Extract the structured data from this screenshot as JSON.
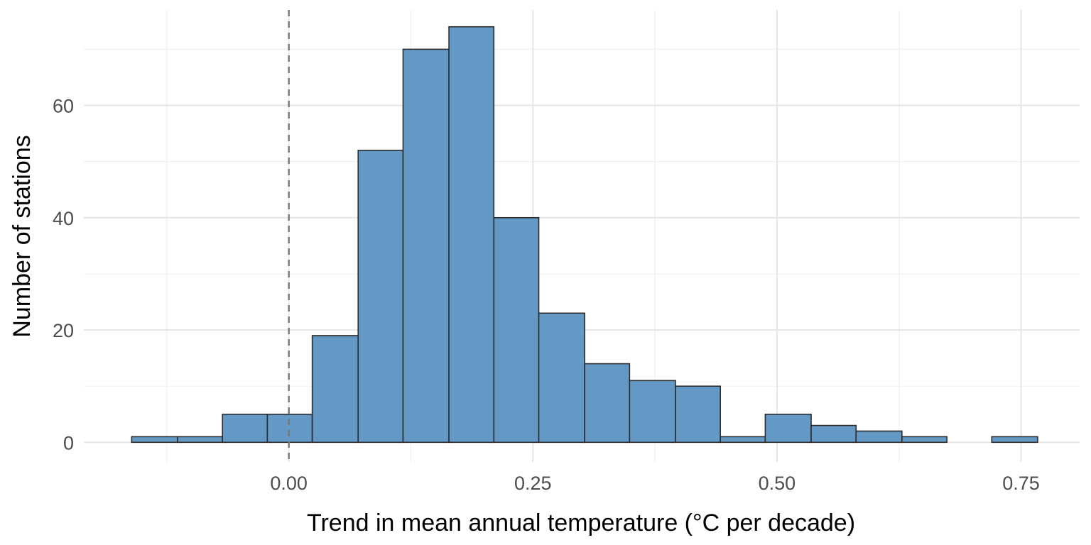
{
  "chart_data": {
    "type": "bar",
    "subtype": "histogram",
    "title": "",
    "xlabel": "Trend in mean annual temperature (°C per decade)",
    "ylabel": "Number of stations",
    "xlim": [
      -0.21,
      0.81
    ],
    "ylim": [
      -3.5,
      77
    ],
    "x_ticks": [
      0.0,
      0.25,
      0.5,
      0.75
    ],
    "x_tick_labels": [
      "0.00",
      "0.25",
      "0.50",
      "0.75"
    ],
    "y_ticks": [
      0,
      20,
      40,
      60
    ],
    "y_tick_labels": [
      "0",
      "20",
      "40",
      "60"
    ],
    "bin_width": 0.0464,
    "bins": [
      {
        "x0": -0.161,
        "x1": -0.114,
        "count": 1
      },
      {
        "x0": -0.114,
        "x1": -0.068,
        "count": 1
      },
      {
        "x0": -0.068,
        "x1": -0.022,
        "count": 5
      },
      {
        "x0": -0.022,
        "x1": 0.024,
        "count": 5
      },
      {
        "x0": 0.024,
        "x1": 0.071,
        "count": 19
      },
      {
        "x0": 0.071,
        "x1": 0.117,
        "count": 52
      },
      {
        "x0": 0.117,
        "x1": 0.164,
        "count": 70
      },
      {
        "x0": 0.164,
        "x1": 0.21,
        "count": 74
      },
      {
        "x0": 0.21,
        "x1": 0.256,
        "count": 40
      },
      {
        "x0": 0.256,
        "x1": 0.303,
        "count": 23
      },
      {
        "x0": 0.303,
        "x1": 0.349,
        "count": 14
      },
      {
        "x0": 0.349,
        "x1": 0.396,
        "count": 11
      },
      {
        "x0": 0.396,
        "x1": 0.442,
        "count": 10
      },
      {
        "x0": 0.442,
        "x1": 0.488,
        "count": 1
      },
      {
        "x0": 0.488,
        "x1": 0.535,
        "count": 5
      },
      {
        "x0": 0.535,
        "x1": 0.581,
        "count": 3
      },
      {
        "x0": 0.581,
        "x1": 0.628,
        "count": 2
      },
      {
        "x0": 0.628,
        "x1": 0.674,
        "count": 1
      },
      {
        "x0": 0.674,
        "x1": 0.72,
        "count": 0
      },
      {
        "x0": 0.72,
        "x1": 0.767,
        "count": 1
      }
    ],
    "reference_line": {
      "x": 0.0,
      "style": "dashed",
      "color": "#777777"
    },
    "bar_fill": "#6499c6",
    "bar_outline": "#2b2b2b",
    "grid": true,
    "legend": "none"
  }
}
